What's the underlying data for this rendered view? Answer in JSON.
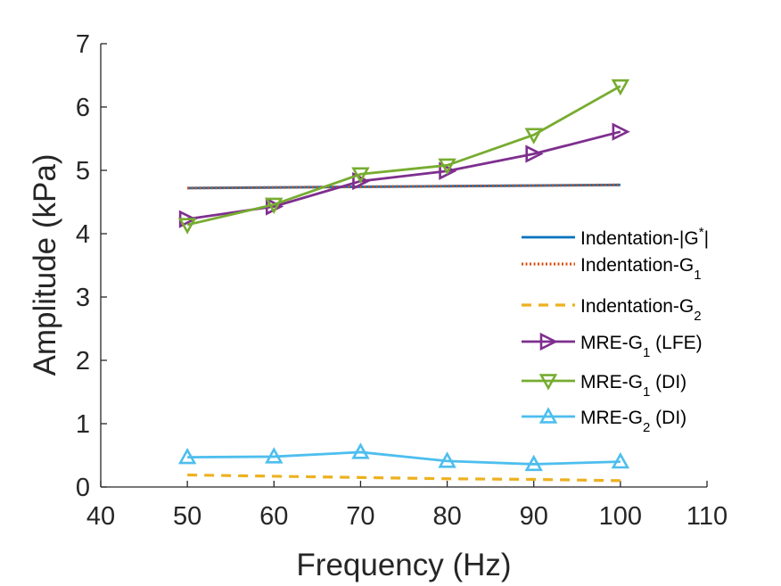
{
  "chart_data": {
    "type": "line",
    "title": "",
    "xlabel": "Frequency (Hz)",
    "ylabel": "Amplitude (kPa)",
    "xlim": [
      40,
      110
    ],
    "ylim": [
      0,
      7
    ],
    "xticks": [
      40,
      50,
      60,
      70,
      80,
      90,
      100,
      110
    ],
    "yticks": [
      0,
      1,
      2,
      3,
      4,
      5,
      6,
      7
    ],
    "grid": false,
    "legend_position": "right-middle",
    "x": [
      50,
      60,
      70,
      80,
      90,
      100
    ],
    "series": [
      {
        "name": "Indentation-|G*|",
        "label_main": "Indentation-|G",
        "label_sup": "*",
        "label_sub": "",
        "label_tail": "|",
        "style": "solid",
        "marker": "none",
        "color": "#0072BD",
        "values": [
          4.72,
          4.73,
          4.74,
          4.75,
          4.76,
          4.77
        ]
      },
      {
        "name": "Indentation-G1",
        "label_main": "Indentation-G",
        "label_sup": "",
        "label_sub": "1",
        "label_tail": "",
        "style": "dotted",
        "marker": "none",
        "color": "#D95319",
        "values": [
          4.72,
          4.73,
          4.74,
          4.75,
          4.76,
          4.77
        ]
      },
      {
        "name": "Indentation-G2",
        "label_main": "Indentation-G",
        "label_sup": "",
        "label_sub": "2",
        "label_tail": "",
        "style": "dashed",
        "marker": "none",
        "color": "#EDB120",
        "values": [
          0.19,
          0.17,
          0.15,
          0.13,
          0.12,
          0.1
        ]
      },
      {
        "name": "MRE-G1 (LFE)",
        "label_main": "MRE-G",
        "label_sup": "",
        "label_sub": "1",
        "label_tail": " (LFE)",
        "style": "solid",
        "marker": "triangle-right",
        "color": "#7E2F8E",
        "values": [
          4.23,
          4.43,
          4.83,
          4.99,
          5.26,
          5.61
        ]
      },
      {
        "name": "MRE-G1 (DI)",
        "label_main": "MRE-G",
        "label_sup": "",
        "label_sub": "1",
        "label_tail": " (DI)",
        "style": "solid",
        "marker": "triangle-down",
        "color": "#77AC30",
        "values": [
          4.14,
          4.46,
          4.94,
          5.08,
          5.56,
          6.33
        ]
      },
      {
        "name": "MRE-G2 (DI)",
        "label_main": "MRE-G",
        "label_sup": "",
        "label_sub": "2",
        "label_tail": " (DI)",
        "style": "solid",
        "marker": "triangle-up",
        "color": "#4DBEEE",
        "values": [
          0.47,
          0.48,
          0.55,
          0.41,
          0.36,
          0.4
        ]
      }
    ]
  }
}
